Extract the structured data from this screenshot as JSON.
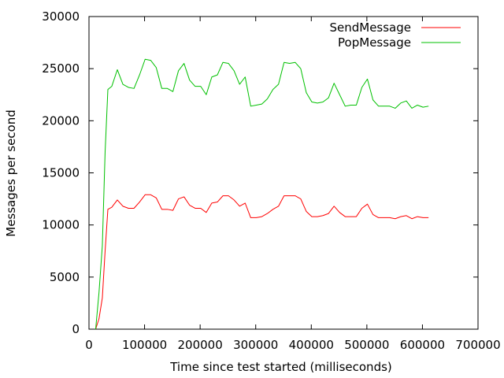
{
  "chart_data": {
    "type": "line",
    "title": "",
    "xlabel": "Time since test started (milliseconds)",
    "ylabel": "Messages per second",
    "xlim": [
      0,
      700000
    ],
    "ylim": [
      0,
      30000
    ],
    "xticks": [
      0,
      100000,
      200000,
      300000,
      400000,
      500000,
      600000,
      700000
    ],
    "yticks": [
      0,
      5000,
      10000,
      15000,
      20000,
      25000,
      30000
    ],
    "grid": false,
    "legend_position": "top-right",
    "series": [
      {
        "name": "SendMessage",
        "color": "#ff0000",
        "x": [
          12000,
          18000,
          24000,
          29000,
          34000,
          41000,
          51000,
          61000,
          71000,
          81000,
          91000,
          101000,
          111000,
          121000,
          131000,
          141000,
          151000,
          161000,
          171000,
          181000,
          191000,
          201000,
          211000,
          221000,
          231000,
          241000,
          251000,
          261000,
          271000,
          281000,
          291000,
          301000,
          311000,
          321000,
          331000,
          341000,
          351000,
          361000,
          371000,
          381000,
          391000,
          401000,
          411000,
          421000,
          431000,
          441000,
          451000,
          461000,
          471000,
          481000,
          491000,
          501000,
          511000,
          521000,
          531000,
          541000,
          551000,
          561000,
          571000,
          581000,
          591000,
          601000,
          611000
        ],
        "y": [
          0,
          1000,
          3000,
          7500,
          11500,
          11700,
          12400,
          11800,
          11600,
          11600,
          12200,
          12900,
          12900,
          12600,
          11500,
          11500,
          11400,
          12500,
          12700,
          11900,
          11600,
          11600,
          11200,
          12100,
          12200,
          12800,
          12800,
          12400,
          11800,
          12100,
          10700,
          10700,
          10800,
          11100,
          11500,
          11800,
          12800,
          12800,
          12800,
          12500,
          11300,
          10800,
          10800,
          10900,
          11100,
          11800,
          11200,
          10800,
          10800,
          10800,
          11600,
          12000,
          11000,
          10700,
          10700,
          10700,
          10600,
          10800,
          10900,
          10600,
          10800,
          10700,
          10700
        ]
      },
      {
        "name": "PopMessage",
        "color": "#00c000",
        "x": [
          12000,
          18000,
          24000,
          29000,
          34000,
          41000,
          51000,
          61000,
          71000,
          81000,
          91000,
          101000,
          111000,
          121000,
          131000,
          141000,
          151000,
          161000,
          171000,
          181000,
          191000,
          201000,
          211000,
          221000,
          231000,
          241000,
          251000,
          261000,
          271000,
          281000,
          291000,
          301000,
          311000,
          321000,
          331000,
          341000,
          351000,
          361000,
          371000,
          381000,
          391000,
          401000,
          411000,
          421000,
          431000,
          441000,
          451000,
          461000,
          471000,
          481000,
          491000,
          501000,
          511000,
          521000,
          531000,
          541000,
          551000,
          561000,
          571000,
          581000,
          591000,
          601000,
          611000
        ],
        "y": [
          0,
          3500,
          8000,
          17000,
          23000,
          23300,
          24900,
          23500,
          23200,
          23100,
          24400,
          25900,
          25800,
          25100,
          23100,
          23100,
          22800,
          24800,
          25500,
          23900,
          23300,
          23300,
          22500,
          24200,
          24400,
          25600,
          25500,
          24800,
          23500,
          24200,
          21400,
          21500,
          21600,
          22100,
          23000,
          23500,
          25600,
          25500,
          25600,
          25000,
          22700,
          21800,
          21700,
          21800,
          22200,
          23600,
          22500,
          21400,
          21500,
          21500,
          23200,
          24000,
          22000,
          21400,
          21400,
          21400,
          21200,
          21700,
          21900,
          21200,
          21500,
          21300,
          21400
        ]
      }
    ]
  }
}
